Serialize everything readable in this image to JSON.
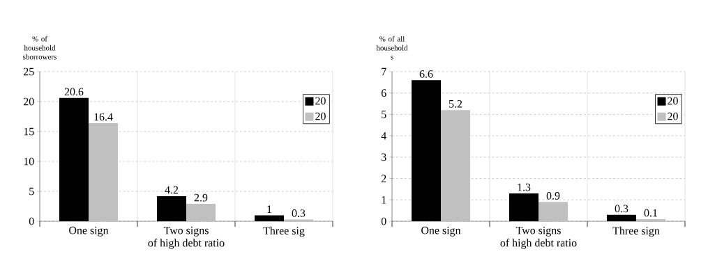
{
  "chart_data": [
    {
      "type": "bar",
      "ylabel": "% of household sborrowers",
      "xlabel": "of high debt ratio",
      "categories": [
        "One sign",
        "Two signs",
        "Three sig"
      ],
      "series": [
        {
          "name": "20",
          "color": "#000000",
          "values": [
            20.6,
            4.2,
            1
          ]
        },
        {
          "name": "20",
          "color": "#c0c0c0",
          "values": [
            16.4,
            2.9,
            0.3
          ]
        }
      ],
      "ylim": [
        0,
        25
      ],
      "yticks": [
        0,
        5,
        10,
        15,
        20,
        25
      ],
      "grid": true,
      "legend": "right",
      "data_labels": true
    },
    {
      "type": "bar",
      "ylabel": "% of all household s",
      "xlabel": "of high debt ratio",
      "categories": [
        "One sign",
        "Two signs",
        "Three sign"
      ],
      "series": [
        {
          "name": "20",
          "color": "#000000",
          "values": [
            6.6,
            1.3,
            0.3
          ]
        },
        {
          "name": "20",
          "color": "#c0c0c0",
          "values": [
            5.2,
            0.9,
            0.1
          ]
        }
      ],
      "ylim": [
        0,
        7
      ],
      "yticks": [
        0,
        1,
        2,
        3,
        4,
        5,
        6,
        7
      ],
      "grid": true,
      "legend": "right",
      "data_labels": true
    }
  ]
}
